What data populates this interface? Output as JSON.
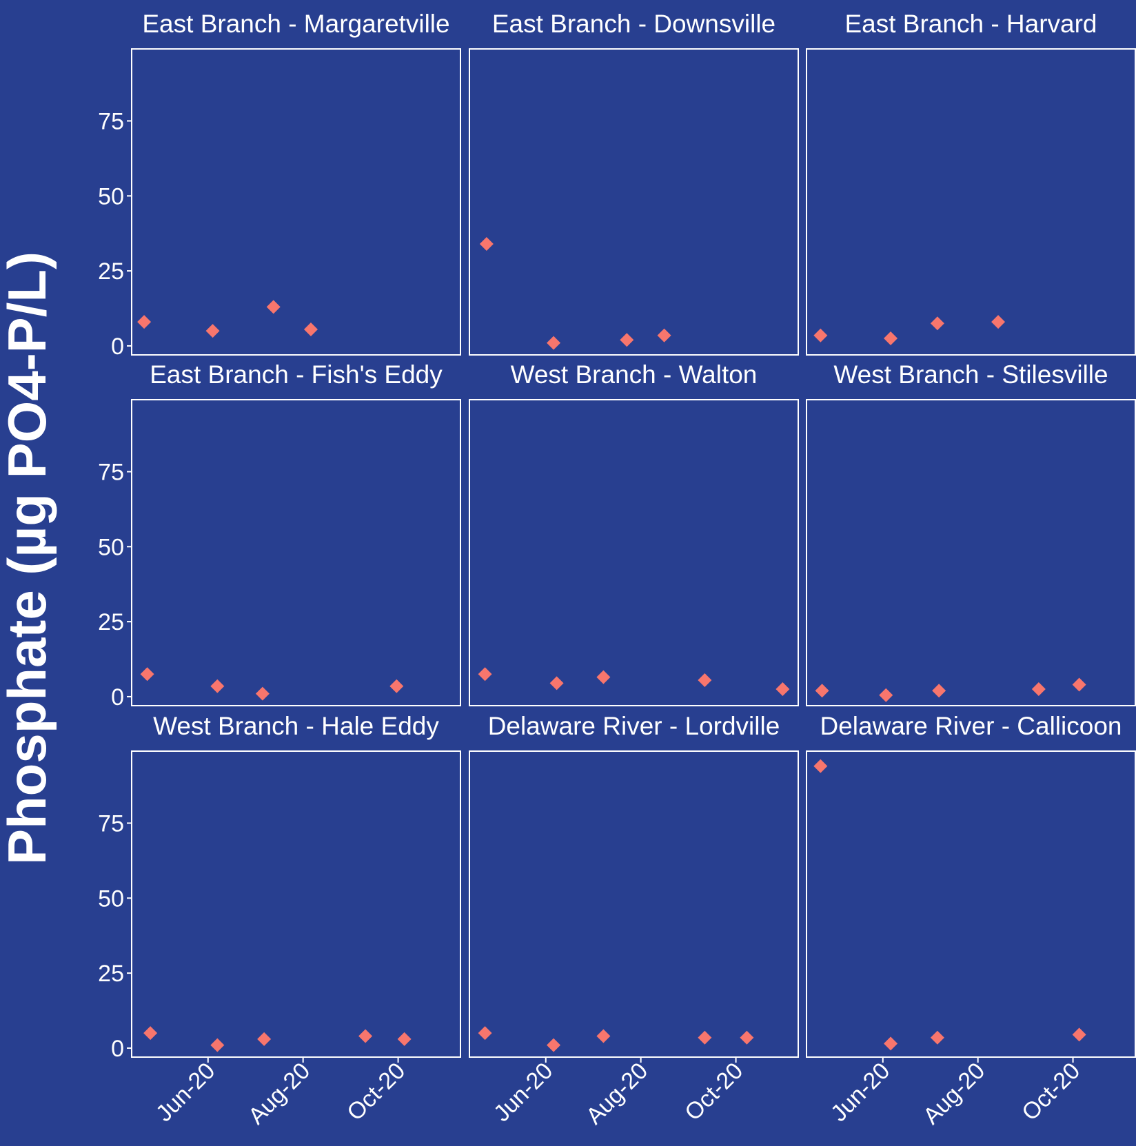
{
  "chart_data": {
    "type": "scatter",
    "facet_layout": "3x3",
    "ylabel": "Phosphate (µg PO4-P/L)",
    "xlabel": "",
    "ylim": [
      -3,
      99
    ],
    "yticks": [
      0,
      25,
      50,
      75
    ],
    "xlim": [
      "2020-04-13",
      "2020-11-10"
    ],
    "xticks": [
      {
        "date": "2020-06-01",
        "label": "Jun-20"
      },
      {
        "date": "2020-08-01",
        "label": "Aug-20"
      },
      {
        "date": "2020-10-01",
        "label": "Oct-20"
      }
    ],
    "marker": "diamond",
    "marker_color": "#f8766d",
    "background_color": "#283f90",
    "grid": false,
    "panels": [
      {
        "title": "East Branch - Margaretville",
        "points": [
          {
            "x": "2020-04-21",
            "y": 8
          },
          {
            "x": "2020-06-04",
            "y": 5
          },
          {
            "x": "2020-07-13",
            "y": 13
          },
          {
            "x": "2020-08-06",
            "y": 5.5
          }
        ]
      },
      {
        "title": "East Branch - Downsville",
        "points": [
          {
            "x": "2020-04-24",
            "y": 34
          },
          {
            "x": "2020-06-06",
            "y": 1
          },
          {
            "x": "2020-07-23",
            "y": 2
          },
          {
            "x": "2020-08-16",
            "y": 3.5
          }
        ]
      },
      {
        "title": "East Branch - Harvard",
        "points": [
          {
            "x": "2020-04-22",
            "y": 3.5
          },
          {
            "x": "2020-06-06",
            "y": 2.5
          },
          {
            "x": "2020-07-06",
            "y": 7.5
          },
          {
            "x": "2020-08-14",
            "y": 8
          }
        ]
      },
      {
        "title": "East Branch - Fish's Eddy",
        "points": [
          {
            "x": "2020-04-23",
            "y": 7.5
          },
          {
            "x": "2020-06-07",
            "y": 3.5
          },
          {
            "x": "2020-07-06",
            "y": 1
          },
          {
            "x": "2020-09-30",
            "y": 3.5
          }
        ]
      },
      {
        "title": "West Branch - Walton",
        "points": [
          {
            "x": "2020-04-23",
            "y": 7.5
          },
          {
            "x": "2020-06-08",
            "y": 4.5
          },
          {
            "x": "2020-07-08",
            "y": 6.5
          },
          {
            "x": "2020-09-11",
            "y": 5.5
          },
          {
            "x": "2020-10-31",
            "y": 2.5
          }
        ]
      },
      {
        "title": "West Branch - Stilesville",
        "points": [
          {
            "x": "2020-04-23",
            "y": 2
          },
          {
            "x": "2020-06-03",
            "y": 0.5
          },
          {
            "x": "2020-07-07",
            "y": 2
          },
          {
            "x": "2020-09-09",
            "y": 2.5
          },
          {
            "x": "2020-10-05",
            "y": 4
          }
        ]
      },
      {
        "title": "West Branch - Hale Eddy",
        "points": [
          {
            "x": "2020-04-25",
            "y": 5
          },
          {
            "x": "2020-06-07",
            "y": 1
          },
          {
            "x": "2020-07-07",
            "y": 3
          },
          {
            "x": "2020-09-10",
            "y": 4
          },
          {
            "x": "2020-10-05",
            "y": 3
          }
        ]
      },
      {
        "title": "Delaware River - Lordville",
        "points": [
          {
            "x": "2020-04-23",
            "y": 5
          },
          {
            "x": "2020-06-06",
            "y": 1
          },
          {
            "x": "2020-07-08",
            "y": 4
          },
          {
            "x": "2020-09-11",
            "y": 3.5
          },
          {
            "x": "2020-10-08",
            "y": 3.5
          }
        ]
      },
      {
        "title": "Delaware River - Callicoon",
        "points": [
          {
            "x": "2020-04-22",
            "y": 94
          },
          {
            "x": "2020-06-06",
            "y": 1.5
          },
          {
            "x": "2020-07-06",
            "y": 3.5
          },
          {
            "x": "2020-10-05",
            "y": 4.5
          }
        ]
      }
    ]
  }
}
